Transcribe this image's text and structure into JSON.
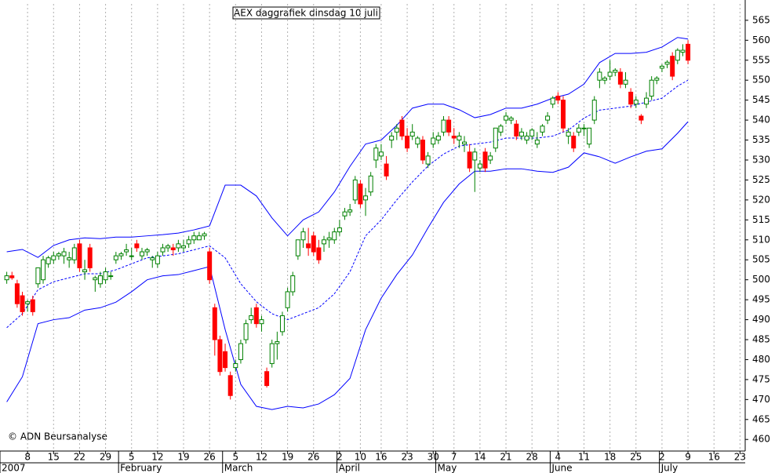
{
  "chart_data": {
    "type": "candlestick",
    "title": "AEX daggrafiek dinsdag 10 juli",
    "copyright": "© ADN Beursanalyse",
    "up_color": "#008000",
    "down_color": "#ff0000",
    "xlim": [
      -1.3,
      142
    ],
    "ylim": [
      457.1,
      569.1
    ],
    "yticks": [
      460,
      465,
      470,
      475,
      480,
      485,
      490,
      495,
      500,
      505,
      510,
      515,
      520,
      525,
      530,
      535,
      540,
      545,
      550,
      555,
      560,
      565
    ],
    "xticks": [
      {
        "value": 4,
        "label": "8"
      },
      {
        "value": 9,
        "label": "15"
      },
      {
        "value": 14,
        "label": "22"
      },
      {
        "value": 19,
        "label": "29"
      },
      {
        "value": 24,
        "label": "5"
      },
      {
        "value": 29,
        "label": "12"
      },
      {
        "value": 34,
        "label": "19"
      },
      {
        "value": 39,
        "label": "26"
      },
      {
        "value": 44,
        "label": "5"
      },
      {
        "value": 49,
        "label": "12"
      },
      {
        "value": 54,
        "label": "19"
      },
      {
        "value": 59,
        "label": "26"
      },
      {
        "value": 64,
        "label": "2"
      },
      {
        "value": 68,
        "label": "10"
      },
      {
        "value": 72,
        "label": "16"
      },
      {
        "value": 77,
        "label": "23"
      },
      {
        "value": 82,
        "label": "30"
      },
      {
        "value": 86,
        "label": "7"
      },
      {
        "value": 91,
        "label": "14"
      },
      {
        "value": 96,
        "label": "21"
      },
      {
        "value": 101,
        "label": "28"
      },
      {
        "value": 106,
        "label": "4"
      },
      {
        "value": 111,
        "label": "11"
      },
      {
        "value": 116,
        "label": "18"
      },
      {
        "value": 121,
        "label": "25"
      },
      {
        "value": 126,
        "label": "2"
      },
      {
        "value": 131,
        "label": "9"
      },
      {
        "value": 136,
        "label": "16"
      },
      {
        "value": 141,
        "label": "23"
      }
    ],
    "months": [
      {
        "value": -1.3,
        "label": "2007"
      },
      {
        "value": 21.5,
        "label": "February"
      },
      {
        "value": 41.5,
        "label": "March"
      },
      {
        "value": 63.5,
        "label": "April"
      },
      {
        "value": 82.5,
        "label": "May"
      },
      {
        "value": 104.5,
        "label": "June"
      },
      {
        "value": 125.5,
        "label": "July"
      }
    ],
    "x": [
      0,
      1,
      2,
      3,
      4,
      5,
      6,
      7,
      8,
      9,
      10,
      11,
      12,
      13,
      14,
      15,
      16,
      17,
      18,
      19,
      20,
      21,
      22,
      23,
      24,
      25,
      26,
      27,
      28,
      29,
      30,
      31,
      32,
      33,
      34,
      35,
      36,
      37,
      38,
      39,
      40,
      41,
      42,
      43,
      44,
      45,
      46,
      47,
      48,
      49,
      50,
      51,
      52,
      53,
      54,
      55,
      56,
      57,
      58,
      59,
      60,
      61,
      62,
      63,
      64,
      65,
      66,
      67,
      68,
      69,
      70,
      71,
      72,
      73,
      74,
      75,
      76,
      77,
      78,
      79,
      80,
      81,
      82,
      83,
      84,
      85,
      86,
      87,
      88,
      89,
      90,
      91,
      92,
      93,
      94,
      95,
      96,
      97,
      98,
      99,
      100,
      101,
      102,
      103,
      104,
      105,
      106,
      107,
      108,
      109,
      110,
      111,
      112,
      113,
      114,
      115,
      116,
      117,
      118,
      119,
      120,
      121,
      122,
      123,
      124,
      125,
      126,
      127,
      128,
      129,
      130,
      131
    ],
    "candles": [
      [
        500,
        502,
        499,
        501
      ],
      [
        501,
        502,
        500,
        500.5
      ],
      [
        499,
        500,
        493,
        494
      ],
      [
        496,
        497,
        491,
        492
      ],
      [
        494,
        495,
        492,
        494.5
      ],
      [
        495,
        496,
        491,
        492
      ],
      [
        499,
        503,
        498,
        503
      ],
      [
        500,
        506,
        499,
        505
      ],
      [
        504,
        506,
        503,
        505.5
      ],
      [
        505,
        507,
        504,
        506
      ],
      [
        506,
        507,
        505,
        506.5
      ],
      [
        506,
        508,
        504,
        507
      ],
      [
        505,
        507,
        503,
        505.5
      ],
      [
        505,
        509,
        504,
        508
      ],
      [
        509,
        510,
        502,
        503
      ],
      [
        502,
        505,
        500,
        502.5
      ],
      [
        508,
        509,
        502,
        503
      ],
      [
        500,
        501,
        497,
        500.5
      ],
      [
        499,
        502,
        498,
        501
      ],
      [
        500,
        503,
        499,
        502
      ],
      [
        501,
        502,
        500,
        501
      ],
      [
        505,
        507,
        504,
        506
      ],
      [
        506,
        507,
        505,
        506.5
      ],
      [
        507,
        509,
        506,
        507.5
      ],
      [
        506,
        508,
        505,
        506
      ],
      [
        509,
        510,
        507,
        508
      ],
      [
        506,
        508,
        505,
        507
      ],
      [
        507,
        508,
        506,
        507.5
      ],
      [
        505,
        506,
        503,
        505.5
      ],
      [
        504,
        507,
        503,
        506
      ],
      [
        507,
        509,
        506,
        508
      ],
      [
        508,
        509,
        507,
        508.5
      ],
      [
        508,
        509,
        506,
        507.5
      ],
      [
        508,
        510,
        507,
        509
      ],
      [
        508,
        510,
        507,
        508.5
      ],
      [
        509,
        511,
        508,
        510
      ],
      [
        510,
        512,
        509,
        511
      ],
      [
        510,
        512,
        510,
        511
      ],
      [
        511,
        512,
        510,
        511.5
      ],
      [
        507,
        508,
        499,
        500
      ],
      [
        493,
        494,
        481,
        485
      ],
      [
        485,
        486,
        476,
        477
      ],
      [
        482,
        484,
        477,
        478
      ],
      [
        476,
        477,
        470,
        471
      ],
      [
        478,
        480,
        477,
        479
      ],
      [
        480,
        485,
        479,
        484
      ],
      [
        485,
        490,
        484,
        489
      ],
      [
        490,
        493,
        489,
        491
      ],
      [
        493,
        494,
        488,
        489
      ],
      [
        489,
        491,
        487,
        490
      ],
      [
        477,
        478,
        473,
        473.5
      ],
      [
        479,
        485,
        478,
        484
      ],
      [
        484,
        487,
        480,
        484.5
      ],
      [
        487,
        492,
        486,
        491
      ],
      [
        493,
        498,
        492,
        497
      ],
      [
        497,
        502,
        496,
        501
      ],
      [
        506,
        510,
        505,
        510
      ],
      [
        510,
        513,
        508,
        512
      ],
      [
        509,
        513,
        506,
        508
      ],
      [
        511,
        512,
        506,
        507
      ],
      [
        508,
        510,
        504,
        505
      ],
      [
        509,
        511,
        507,
        510
      ],
      [
        510,
        512,
        508,
        510.5
      ],
      [
        510,
        513,
        509,
        512
      ],
      [
        512,
        515,
        511,
        513
      ],
      [
        516,
        518,
        515,
        517
      ],
      [
        517,
        519,
        516,
        517.5
      ],
      [
        520,
        526,
        519,
        525
      ],
      [
        524,
        525,
        518,
        519
      ],
      [
        520,
        523,
        516,
        521
      ],
      [
        522,
        527,
        521,
        526
      ],
      [
        530,
        534,
        528,
        533
      ],
      [
        531,
        534,
        530,
        532
      ],
      [
        529,
        531,
        525,
        526
      ],
      [
        535,
        537,
        533,
        536
      ],
      [
        537,
        539,
        535,
        538
      ],
      [
        540,
        541,
        535,
        536
      ],
      [
        536,
        538,
        532,
        533
      ],
      [
        536,
        539,
        535,
        537
      ],
      [
        534,
        536,
        533,
        535.5
      ],
      [
        535,
        536,
        529,
        530
      ],
      [
        529,
        532,
        528,
        531
      ],
      [
        534,
        537,
        533,
        535.5
      ],
      [
        535,
        537,
        534,
        536
      ],
      [
        537,
        541,
        536,
        540
      ],
      [
        540,
        541,
        536,
        537
      ],
      [
        536,
        538,
        534,
        535.5
      ],
      [
        535,
        537,
        533,
        536
      ],
      [
        534,
        536,
        532,
        534.5
      ],
      [
        532,
        534,
        527,
        528
      ],
      [
        530,
        533,
        522,
        532
      ],
      [
        528,
        530,
        527,
        529
      ],
      [
        532,
        533,
        527,
        528
      ],
      [
        530,
        532,
        529,
        531
      ],
      [
        533,
        538,
        532,
        538
      ],
      [
        537,
        539,
        536,
        538.5
      ],
      [
        540,
        542,
        539,
        541
      ],
      [
        540,
        541,
        539,
        540.5
      ],
      [
        539,
        540,
        535,
        536
      ],
      [
        536,
        538,
        535,
        537
      ],
      [
        535,
        537,
        534,
        536
      ],
      [
        536,
        538,
        535,
        537.5
      ],
      [
        534,
        537,
        533,
        535
      ],
      [
        537,
        539,
        536,
        538.5
      ],
      [
        540,
        542,
        539,
        541
      ],
      [
        544,
        546,
        543,
        545.5
      ],
      [
        546,
        547,
        544,
        545
      ],
      [
        545,
        546,
        537,
        538
      ],
      [
        536,
        538,
        534,
        537
      ],
      [
        536,
        537,
        532,
        533
      ],
      [
        537,
        539,
        536,
        538
      ],
      [
        538,
        539,
        536,
        538
      ],
      [
        534,
        538,
        533,
        538
      ],
      [
        540,
        546,
        539,
        545
      ],
      [
        550,
        553,
        548,
        552
      ],
      [
        550,
        551,
        549,
        550.5
      ],
      [
        551,
        555,
        550,
        552
      ],
      [
        552,
        553,
        551,
        552.5
      ],
      [
        552,
        553,
        548,
        549
      ],
      [
        549,
        552,
        548,
        550
      ],
      [
        547,
        548,
        543,
        544
      ],
      [
        544,
        546,
        543,
        545
      ],
      [
        541,
        541.5,
        539,
        540
      ],
      [
        544,
        547,
        543,
        545.5
      ],
      [
        546,
        551,
        545,
        550
      ],
      [
        550,
        551,
        549,
        550.5
      ],
      [
        553,
        554,
        552,
        553.5
      ],
      [
        554,
        555,
        553,
        554.5
      ],
      [
        556,
        557,
        550,
        551
      ],
      [
        555,
        558,
        554,
        557.5
      ],
      [
        557,
        559,
        556,
        557.5
      ],
      [
        559,
        560,
        554,
        555
      ]
    ],
    "band_x": [
      0,
      3,
      6,
      9,
      12,
      15,
      18,
      21,
      24,
      27,
      30,
      33,
      36,
      39,
      42,
      45,
      48,
      51,
      54,
      57,
      60,
      63,
      66,
      69,
      72,
      75,
      78,
      81,
      84,
      87,
      90,
      93,
      96,
      99,
      102,
      105,
      108,
      111,
      114,
      117,
      120,
      123,
      126,
      129,
      131
    ],
    "bands": [
      {
        "color": "#0000ff",
        "dashed": false,
        "values": [
          507,
          507.6,
          505.6,
          508.6,
          510,
          510.5,
          510.3,
          510.7,
          510.7,
          511,
          511.3,
          511.7,
          512.5,
          513.5,
          523.7,
          523.7,
          521,
          515.5,
          511,
          515,
          517,
          522,
          528.4,
          534,
          535,
          538.7,
          543,
          544,
          544,
          542.6,
          540.6,
          541.4,
          543,
          543,
          544,
          545.5,
          546.5,
          549,
          554.4,
          556.7,
          556.7,
          557,
          558.3,
          560.7,
          560.3
        ]
      },
      {
        "color": "#0000ff",
        "dashed": true,
        "values": [
          488,
          491.5,
          497.5,
          499.5,
          500.5,
          501.5,
          501.5,
          502.5,
          504,
          505.5,
          506,
          506.5,
          507.5,
          508.5,
          505.5,
          499,
          494.5,
          491.5,
          490,
          491.5,
          493,
          496.5,
          502,
          511,
          515,
          520,
          524.5,
          528.5,
          531.5,
          533.5,
          534,
          534.5,
          535.5,
          535.5,
          535.5,
          536,
          537.5,
          540.5,
          542.5,
          543,
          543.5,
          544.5,
          545.5,
          548.5,
          550
        ]
      },
      {
        "color": "#0000ff",
        "dashed": false,
        "values": [
          469.4,
          475.7,
          489,
          490,
          490.5,
          492.4,
          493,
          494.4,
          497,
          500,
          501,
          501.3,
          502.3,
          503.3,
          487.5,
          473.8,
          468.3,
          467.5,
          468.3,
          467.9,
          468.9,
          471.2,
          475.3,
          487.5,
          495.4,
          501.3,
          506.2,
          513,
          519.4,
          524,
          527.2,
          527.2,
          527.8,
          527.8,
          527.2,
          526.9,
          528.2,
          531.8,
          530.8,
          529.2,
          530.8,
          532.2,
          532.8,
          536.7,
          539.6
        ]
      }
    ],
    "grid": true
  }
}
